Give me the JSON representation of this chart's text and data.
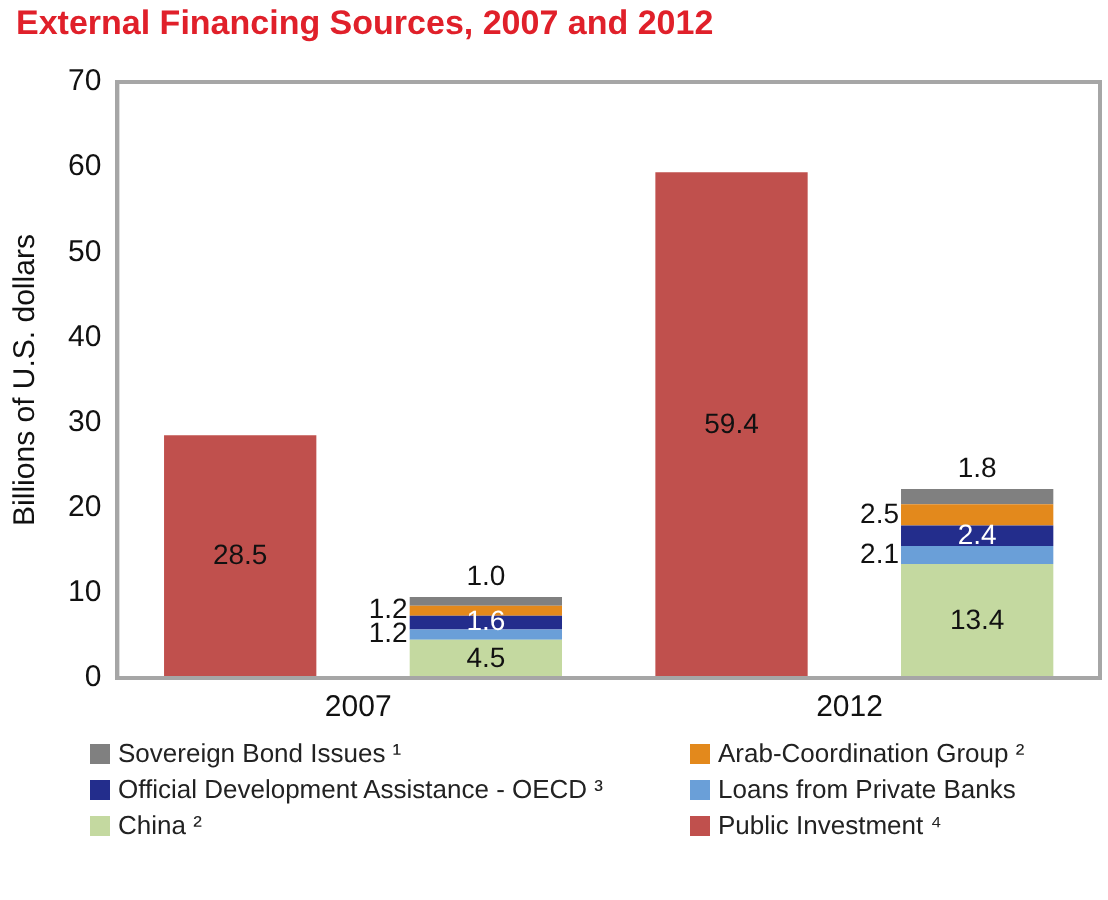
{
  "chart_data": {
    "type": "bar",
    "title": "External Financing Sources, 2007 and 2012",
    "ylabel": "Billions of U.S. dollars",
    "categories": [
      "2007",
      null,
      "2012",
      null
    ],
    "stacked": true,
    "legend": "bottom",
    "grid": false,
    "ylim": [
      0,
      70
    ],
    "yticks": [
      0,
      10,
      20,
      30,
      40,
      50,
      60,
      70
    ],
    "series": [
      {
        "name": "Public Investment ⁴",
        "color": "#c0504d",
        "values": [
          28.5,
          null,
          59.4,
          null
        ],
        "value_labels": [
          "28.5",
          null,
          "59.4",
          null
        ]
      },
      {
        "name": "China ²",
        "color": "#c4d9a0",
        "values": [
          null,
          4.5,
          null,
          13.4
        ],
        "value_labels": [
          null,
          "4.5",
          null,
          "13.4"
        ]
      },
      {
        "name": "Loans from Private Banks",
        "color": "#6a9fd8",
        "values": [
          null,
          1.2,
          null,
          2.1
        ],
        "value_labels": [
          null,
          "1.2",
          null,
          "2.1"
        ]
      },
      {
        "name": "Official Development Assistance - OECD ³",
        "color": "#232d8c",
        "values": [
          null,
          1.6,
          null,
          2.4
        ],
        "value_labels": [
          null,
          "1.6",
          null,
          "2.4"
        ]
      },
      {
        "name": "Arab-Coordination Group ²",
        "color": "#e3891c",
        "values": [
          null,
          1.2,
          null,
          2.5
        ],
        "value_labels": [
          null,
          "1.2",
          null,
          "2.5"
        ]
      },
      {
        "name": "Sovereign Bond Issues ¹",
        "color": "#808080",
        "values": [
          null,
          1.0,
          null,
          1.8
        ],
        "value_labels": [
          null,
          "1.0",
          null,
          "1.8"
        ]
      }
    ]
  }
}
